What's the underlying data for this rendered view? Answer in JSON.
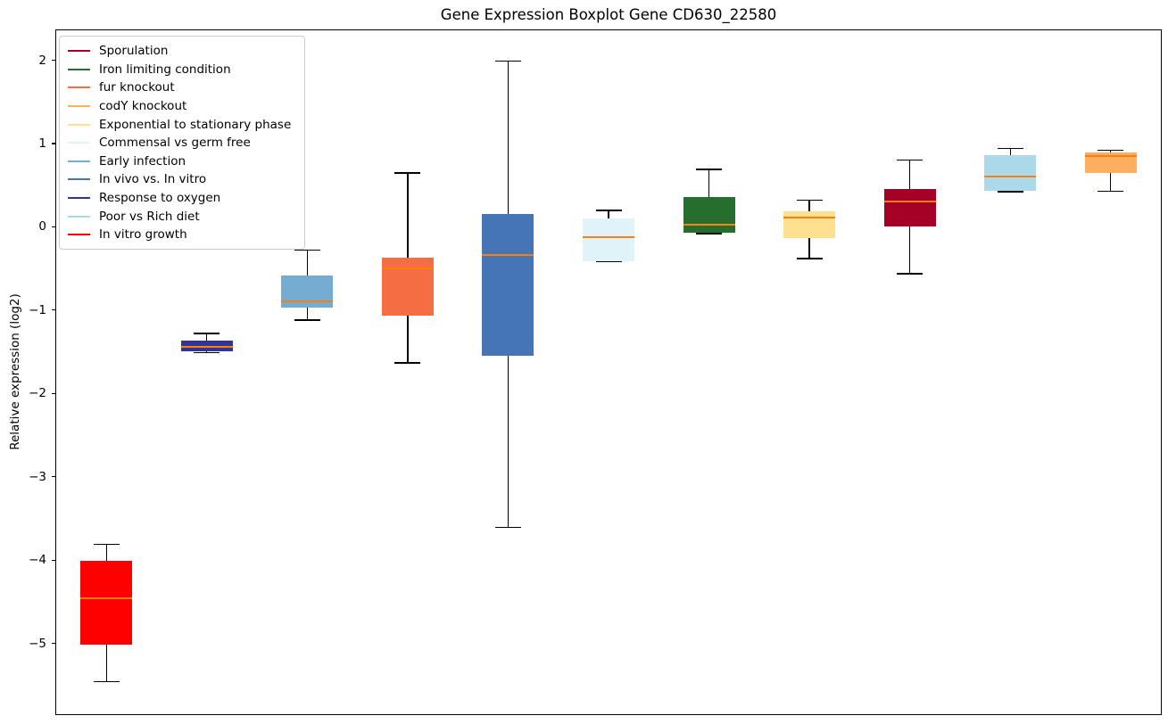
{
  "chart_data": {
    "type": "boxplot",
    "title": "Gene Expression Boxplot Gene CD630_22580",
    "xlabel": "",
    "ylabel": "Relative expression (log2)",
    "ylim": [
      -5.84,
      2.37
    ],
    "yticks": [
      2,
      1,
      0,
      -1,
      -2,
      -3,
      -4,
      -5
    ],
    "xticklabels_visible": false,
    "grid": false,
    "legend_position": "upper left",
    "median_color": "#ff7f0e",
    "whisker_color": "#000000",
    "series": [
      {
        "name": "Sporulation",
        "color": "#a50026",
        "x_position": 9,
        "whisker_low": -0.55,
        "q1": 0.02,
        "median": 0.31,
        "q3": 0.46,
        "whisker_high": 0.81
      },
      {
        "name": "Iron limiting condition",
        "color": "#266e2e",
        "x_position": 7,
        "whisker_low": -0.07,
        "q1": -0.06,
        "median": 0.04,
        "q3": 0.37,
        "whisker_high": 0.7
      },
      {
        "name": "fur knockout",
        "color": "#f46d43",
        "x_position": 4,
        "whisker_low": -1.62,
        "q1": -1.06,
        "median": -0.49,
        "q3": -0.36,
        "whisker_high": 0.66
      },
      {
        "name": "codY knockout",
        "color": "#fdae61",
        "x_position": 11,
        "whisker_low": 0.44,
        "q1": 0.66,
        "median": 0.86,
        "q3": 0.9,
        "whisker_high": 0.93
      },
      {
        "name": "Exponential to stationary phase",
        "color": "#fee090",
        "x_position": 8,
        "whisker_low": -0.37,
        "q1": -0.12,
        "median": 0.12,
        "q3": 0.2,
        "whisker_high": 0.33
      },
      {
        "name": "Commensal vs germ free",
        "color": "#e0f3f8",
        "x_position": 6,
        "whisker_low": -0.41,
        "q1": -0.4,
        "median": -0.11,
        "q3": 0.11,
        "whisker_high": 0.21
      },
      {
        "name": "Early infection",
        "color": "#74add1",
        "x_position": 3,
        "whisker_low": -1.11,
        "q1": -0.96,
        "median": -0.88,
        "q3": -0.57,
        "whisker_high": -0.27
      },
      {
        "name": "In vivo vs. In vitro",
        "color": "#4575b4",
        "x_position": 5,
        "whisker_low": -3.6,
        "q1": -1.54,
        "median": -0.33,
        "q3": 0.16,
        "whisker_high": 2.0
      },
      {
        "name": "Response to oxygen",
        "color": "#313695",
        "x_position": 2,
        "whisker_low": -1.5,
        "q1": -1.48,
        "median": -1.43,
        "q3": -1.35,
        "whisker_high": -1.27
      },
      {
        "name": "Poor vs Rich diet",
        "color": "#abd9e9",
        "x_position": 10,
        "whisker_low": 0.43,
        "q1": 0.44,
        "median": 0.61,
        "q3": 0.87,
        "whisker_high": 0.95
      },
      {
        "name": "In vitro growth",
        "color": "#ff0000",
        "x_position": 1,
        "whisker_low": -5.45,
        "q1": -5.0,
        "median": -4.45,
        "q3": -4.0,
        "whisker_high": -3.8
      }
    ]
  }
}
